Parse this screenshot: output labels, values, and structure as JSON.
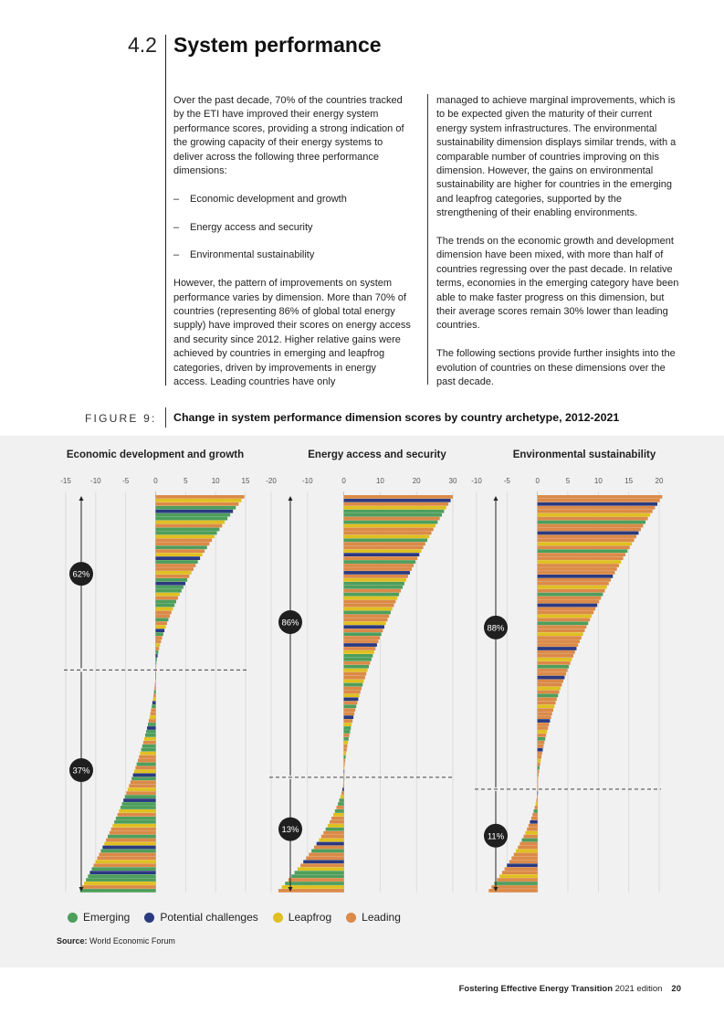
{
  "section": {
    "number": "4.2",
    "title": "System performance"
  },
  "body": {
    "col1_p1": "Over the past decade, 70% of the countries tracked by the ETI have improved their energy system performance scores, providing a strong indication of the growing capacity of their energy systems to deliver across the following three performance dimensions:",
    "bullets": [
      "Economic development and growth",
      "Energy access and security",
      "Environmental sustainability"
    ],
    "col1_p2": "However, the pattern of improvements on system performance varies by dimension. More than 70% of countries (representing 86% of global total energy supply) have improved their scores on energy access and security since 2012. Higher relative gains were achieved by countries in emerging and leapfrog categories, driven by improvements in energy access. Leading countries have only",
    "col2_p1": "managed to achieve marginal improvements, which is to be expected given the maturity of their current energy system infrastructures. The environmental sustainability dimension displays similar trends, with a comparable number of countries improving on this dimension. However, the gains on environmental sustainability are higher for countries in the emerging and leapfrog categories, supported by the strengthening of their enabling environments.",
    "col2_p2": "The trends on the economic growth and development dimension have been mixed, with more than half of countries regressing over the past decade. In relative terms, economies in the emerging category have been able to make faster progress on this dimension, but their average scores remain 30% lower than leading countries.",
    "col2_p3": "The following sections provide further insights into the evolution of countries on these dimensions over the past decade."
  },
  "figure": {
    "label": "FIGURE 9:",
    "title": "Change in system performance dimension scores by country archetype, 2012-2021",
    "source_label": "Source:",
    "source_text": " World Economic Forum",
    "legend": [
      {
        "name": "Emerging",
        "color": "#4e9e5c"
      },
      {
        "name": "Potential challenges",
        "color": "#2b3a80"
      },
      {
        "name": "Leapfrog",
        "color": "#e0c020"
      },
      {
        "name": "Leading",
        "color": "#db8a48"
      }
    ]
  },
  "chart_data": [
    {
      "type": "bar",
      "orientation": "horizontal",
      "title": "Economic development and growth",
      "xlim": [
        -15,
        15
      ],
      "xticks": [
        -15,
        -10,
        -5,
        0,
        5,
        10,
        15
      ],
      "annotations": [
        {
          "label": "62%",
          "side": "positive"
        },
        {
          "label": "37%",
          "side": "negative"
        }
      ],
      "range": [
        14.8,
        -12.6
      ],
      "improved_share": 0.44,
      "pattern": [
        "Leading",
        "Leapfrog",
        "Leading",
        "Emerging",
        "Potential challenges",
        "Emerging",
        "Emerging",
        "Leapfrog",
        "Leading",
        "Emerging",
        "Emerging",
        "Leapfrog",
        "Leading",
        "Leading",
        "Emerging",
        "Leading",
        "Leapfrog",
        "Potential challenges",
        "Emerging",
        "Leading"
      ]
    },
    {
      "type": "bar",
      "orientation": "horizontal",
      "title": "Energy access and security",
      "xlim": [
        -20,
        30
      ],
      "xticks": [
        -20,
        -10,
        0,
        10,
        20,
        30
      ],
      "annotations": [
        {
          "label": "86%",
          "side": "positive"
        },
        {
          "label": "13%",
          "side": "negative"
        }
      ],
      "range": [
        30,
        -18
      ],
      "improved_share": 0.71,
      "pattern": [
        "Leading",
        "Potential challenges",
        "Leading",
        "Leapfrog",
        "Emerging",
        "Emerging",
        "Leading",
        "Emerging",
        "Leapfrog",
        "Leading",
        "Leading",
        "Leapfrog",
        "Emerging",
        "Leading",
        "Leading",
        "Leapfrog",
        "Potential challenges",
        "Leading",
        "Emerging",
        "Leading"
      ]
    },
    {
      "type": "bar",
      "orientation": "horizontal",
      "title": "Environmental sustainability",
      "xlim": [
        -10,
        20
      ],
      "xticks": [
        -10,
        -5,
        0,
        5,
        10,
        15,
        20
      ],
      "annotations": [
        {
          "label": "88%",
          "side": "positive"
        },
        {
          "label": "11%",
          "side": "negative"
        }
      ],
      "range": [
        20.5,
        -8
      ],
      "improved_share": 0.74,
      "pattern": [
        "Leading",
        "Leading",
        "Potential challenges",
        "Leading",
        "Leading",
        "Leapfrog",
        "Leading",
        "Emerging",
        "Leading",
        "Leading",
        "Potential challenges",
        "Leading",
        "Leading",
        "Leapfrog",
        "Leading",
        "Emerging",
        "Leading",
        "Leading",
        "Leapfrog",
        "Leading"
      ]
    }
  ],
  "footer": {
    "bold": "Fostering Effective Energy Transition",
    "rest": " 2021 edition",
    "page": "20"
  }
}
